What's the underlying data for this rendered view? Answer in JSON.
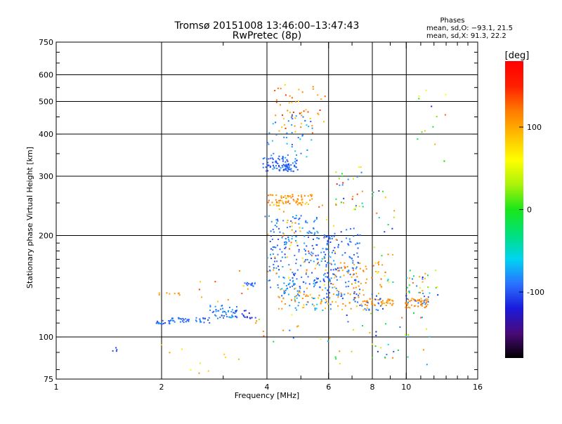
{
  "chart_data": {
    "type": "scatter",
    "title": "Tromsø 20151008 13:46:00–13:47:43",
    "subtitle": "RwPretec (8p)",
    "xlabel": "Frequency [MHz]",
    "ylabel": "Stationary phase Virtual Height [km]",
    "x_scale": "log",
    "y_scale": "log",
    "xlim": [
      1,
      16
    ],
    "ylim": [
      75,
      750
    ],
    "x_ticks": [
      1,
      2,
      4,
      6,
      8,
      10,
      16
    ],
    "x_minor_ticks": [
      3,
      5,
      7,
      9,
      11,
      12,
      13,
      14,
      15
    ],
    "x_grid": [
      2,
      4,
      6,
      8,
      10
    ],
    "y_ticks": [
      75,
      100,
      200,
      300,
      400,
      500,
      600,
      750
    ],
    "y_grid": [
      100,
      200,
      300,
      400,
      500,
      600
    ],
    "grid": true,
    "legend": {
      "heading": "Phases",
      "lines": [
        "mean, sd,O: −93.1, 21.5",
        "mean, sd,X:  91.3, 22.2"
      ],
      "placement": "top-right"
    },
    "colorbar": {
      "title": "[deg]",
      "range": [
        -180,
        180
      ],
      "ticks": [
        100,
        0,
        -100
      ],
      "placement": "right",
      "stops": [
        "#000000",
        "#4a0a78",
        "#1a1adb",
        "#2a72ff",
        "#00d4f2",
        "#00e07a",
        "#19e619",
        "#aaf20a",
        "#ffff00",
        "#ffbe00",
        "#ff7a00",
        "#ff1e00",
        "#ff0000"
      ]
    },
    "clusters": [
      {
        "name": "b1",
        "f": [
          1.45,
          1.5
        ],
        "h": [
          90,
          93
        ],
        "phase": [
          -110,
          -90
        ],
        "n": 4
      },
      {
        "name": "b2",
        "f": [
          1.92,
          2.12
        ],
        "h": [
          109,
          112
        ],
        "phase": [
          -110,
          -80
        ],
        "n": 20
      },
      {
        "name": "b3",
        "f": [
          2.12,
          2.75
        ],
        "h": [
          110,
          114
        ],
        "phase": [
          -105,
          -80
        ],
        "n": 40
      },
      {
        "name": "b4",
        "f": [
          2.75,
          3.3
        ],
        "h": [
          113,
          124
        ],
        "phase": [
          -100,
          -70
        ],
        "n": 45
      },
      {
        "name": "b5",
        "f": [
          3.2,
          3.65
        ],
        "h": [
          113,
          120
        ],
        "phase": [
          -130,
          -95
        ],
        "n": 18
      },
      {
        "name": "b6",
        "f": [
          3.45,
          3.7
        ],
        "h": [
          141,
          145
        ],
        "phase": [
          -110,
          -80
        ],
        "n": 14
      },
      {
        "name": "y1",
        "f": [
          1.95,
          2.3
        ],
        "h": [
          133,
          136
        ],
        "phase": [
          95,
          115
        ],
        "n": 8
      },
      {
        "name": "y2",
        "f": [
          2.3,
          3.6
        ],
        "h": [
          127,
          158
        ],
        "phase": [
          70,
          140
        ],
        "n": 10
      },
      {
        "name": "y3",
        "f": [
          1.95,
          3.4
        ],
        "h": [
          78,
          98
        ],
        "phase": [
          20,
          120
        ],
        "n": 10
      },
      {
        "name": "b7",
        "f": [
          3.9,
          4.9
        ],
        "h": [
          310,
          340
        ],
        "phase": [
          -110,
          -80
        ],
        "n": 90
      },
      {
        "name": "b8",
        "f": [
          4.0,
          5.4
        ],
        "h": [
          340,
          460
        ],
        "phase": [
          -100,
          -60
        ],
        "n": 45
      },
      {
        "name": "y4",
        "f": [
          4.0,
          5.4
        ],
        "h": [
          245,
          265
        ],
        "phase": [
          85,
          130
        ],
        "n": 75
      },
      {
        "name": "b9",
        "f": [
          3.9,
          5.6
        ],
        "h": [
          195,
          230
        ],
        "phase": [
          -100,
          -70
        ],
        "n": 55
      },
      {
        "name": "y5",
        "f": [
          4.2,
          5.9
        ],
        "h": [
          400,
          560
        ],
        "phase": [
          80,
          150
        ],
        "n": 50
      },
      {
        "name": "b10",
        "f": [
          4.0,
          6.4
        ],
        "h": [
          140,
          200
        ],
        "phase": [
          -110,
          -70
        ],
        "n": 160
      },
      {
        "name": "y6",
        "f": [
          4.0,
          6.4
        ],
        "h": [
          140,
          250
        ],
        "phase": [
          60,
          140
        ],
        "n": 50
      },
      {
        "name": "b11",
        "f": [
          4.4,
          6.1
        ],
        "h": [
          120,
          150
        ],
        "phase": [
          -100,
          -60
        ],
        "n": 60
      },
      {
        "name": "y7",
        "f": [
          4.3,
          6.1
        ],
        "h": [
          120,
          140
        ],
        "phase": [
          80,
          130
        ],
        "n": 40
      },
      {
        "name": "b12",
        "f": [
          5.8,
          7.4
        ],
        "h": [
          130,
          210
        ],
        "phase": [
          -110,
          -80
        ],
        "n": 110
      },
      {
        "name": "y8",
        "f": [
          6.0,
          8.6
        ],
        "h": [
          120,
          170
        ],
        "phase": [
          90,
          130
        ],
        "n": 80
      },
      {
        "name": "m1",
        "f": [
          6.2,
          7.6
        ],
        "h": [
          230,
          320
        ],
        "phase": [
          -160,
          160
        ],
        "n": 30
      },
      {
        "name": "y9",
        "f": [
          7.6,
          9.2
        ],
        "h": [
          124,
          130
        ],
        "phase": [
          100,
          120
        ],
        "n": 35
      },
      {
        "name": "b13",
        "f": [
          7.0,
          8.6
        ],
        "h": [
          120,
          135
        ],
        "phase": [
          -110,
          -80
        ],
        "n": 25
      },
      {
        "name": "y10",
        "f": [
          9.8,
          11.6
        ],
        "h": [
          122,
          130
        ],
        "phase": [
          100,
          125
        ],
        "n": 45
      },
      {
        "name": "b14",
        "f": [
          10.0,
          11.6
        ],
        "h": [
          125,
          135
        ],
        "phase": [
          -100,
          -80
        ],
        "n": 12
      },
      {
        "name": "m2",
        "f": [
          9.8,
          12.4
        ],
        "h": [
          132,
          160
        ],
        "phase": [
          -130,
          130
        ],
        "n": 30
      },
      {
        "name": "m3",
        "f": [
          8.0,
          9.6
        ],
        "h": [
          140,
          280
        ],
        "phase": [
          -130,
          140
        ],
        "n": 25
      },
      {
        "name": "m4",
        "f": [
          6.0,
          12.0
        ],
        "h": [
          82,
          118
        ],
        "phase": [
          -120,
          140
        ],
        "n": 40
      },
      {
        "name": "m5",
        "f": [
          10.5,
          13.0
        ],
        "h": [
          330,
          600
        ],
        "phase": [
          -120,
          130
        ],
        "n": 14
      },
      {
        "name": "m6",
        "f": [
          3.7,
          6.0
        ],
        "h": [
          95,
          120
        ],
        "phase": [
          -120,
          140
        ],
        "n": 15
      }
    ]
  }
}
